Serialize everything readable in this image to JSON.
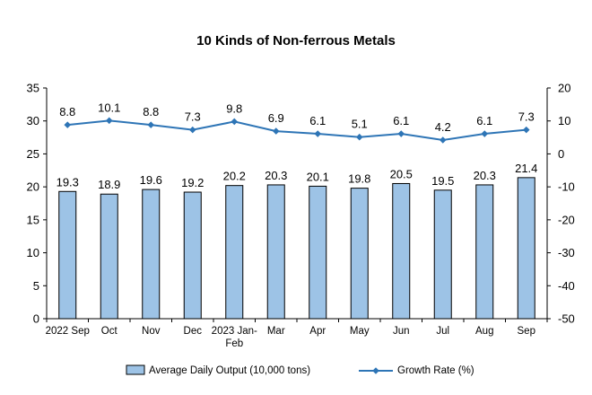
{
  "chart_data": {
    "type": "bar",
    "title": "10 Kinds of Non-ferrous Metals",
    "categories": [
      "2022 Sep",
      "Oct",
      "Nov",
      "Dec",
      "2023 Jan-Feb",
      "Mar",
      "Apr",
      "May",
      "Jun",
      "Jul",
      "Aug",
      "Sep"
    ],
    "series": [
      {
        "name": "Average Daily Output (10,000 tons)",
        "type": "bar",
        "axis": "left",
        "color": "#9DC3E6",
        "values": [
          19.3,
          18.9,
          19.6,
          19.2,
          20.2,
          20.3,
          20.1,
          19.8,
          20.5,
          19.5,
          20.3,
          21.4
        ],
        "labels": [
          "19.3",
          "18.9",
          "19.6",
          "19.2",
          "20.2",
          "20.3",
          "20.1",
          "19.8",
          "20.5",
          "19.5",
          "20.3",
          "21.4"
        ]
      },
      {
        "name": "Growth Rate (%)",
        "type": "line",
        "axis": "right",
        "color": "#2E75B6",
        "values": [
          8.8,
          10.1,
          8.8,
          7.3,
          9.8,
          6.9,
          6.1,
          5.1,
          6.1,
          4.2,
          6.1,
          7.3
        ],
        "labels": [
          "8.8",
          "10.1",
          "8.8",
          "7.3",
          "9.8",
          "6.9",
          "6.1",
          "5.1",
          "6.1",
          "4.2",
          "6.1",
          "7.3"
        ]
      }
    ],
    "y_left": {
      "min": 0,
      "max": 35,
      "ticks": [
        "0",
        "5",
        "10",
        "15",
        "20",
        "25",
        "30",
        "35"
      ]
    },
    "y_right": {
      "min": -50,
      "max": 20,
      "ticks": [
        "-50",
        "-40",
        "-30",
        "-20",
        "-10",
        "0",
        "10",
        "20"
      ]
    },
    "grid": false,
    "legend_position": "bottom"
  }
}
